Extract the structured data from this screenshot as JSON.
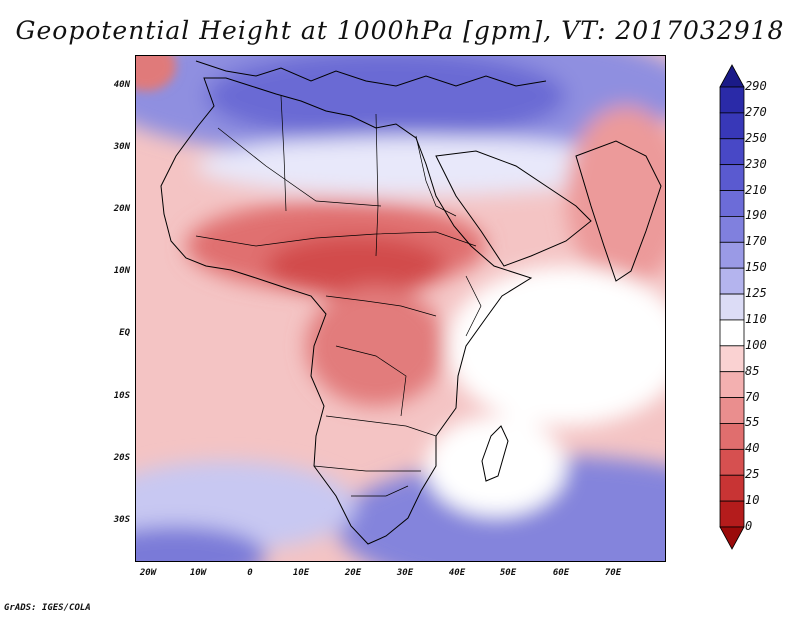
{
  "title": "Geopotential Height at 1000hPa [gpm], VT: 2017032918",
  "credit": "GrADS: IGES/COLA",
  "chart_data": {
    "type": "heatmap",
    "variable": "Geopotential Height",
    "level": "1000hPa",
    "units": "gpm",
    "valid_time": "2017032918",
    "lat_range": [
      -36,
      45
    ],
    "lon_range": [
      -23,
      80
    ],
    "lat_ticks": [
      "40N",
      "30N",
      "20N",
      "10N",
      "EQ",
      "10S",
      "20S",
      "30S"
    ],
    "lat_tick_values": [
      40,
      30,
      20,
      10,
      0,
      -10,
      -20,
      -30
    ],
    "lon_ticks": [
      "20W",
      "10W",
      "0",
      "10E",
      "20E",
      "30E",
      "40E",
      "50E",
      "60E",
      "70E"
    ],
    "lon_tick_values": [
      -20,
      -10,
      0,
      10,
      20,
      30,
      40,
      50,
      60,
      70
    ],
    "colorbar": {
      "levels": [
        "290",
        "270",
        "250",
        "230",
        "210",
        "190",
        "170",
        "150",
        "125",
        "110",
        "100",
        "85",
        "70",
        "55",
        "40",
        "25",
        "10",
        "0"
      ],
      "level_values": [
        290,
        270,
        250,
        230,
        210,
        190,
        170,
        150,
        125,
        110,
        100,
        85,
        70,
        55,
        40,
        25,
        10,
        0
      ],
      "colors": [
        "#1a1a88",
        "#2a2aa8",
        "#3838b8",
        "#4848c6",
        "#5a5ad0",
        "#6c6cd8",
        "#8080de",
        "#9a9ae6",
        "#b4b4ee",
        "#dcdcf6",
        "#ffffff",
        "#fad2d2",
        "#f3b0b0",
        "#ea8e8e",
        "#e06e6e",
        "#d65050",
        "#c83434",
        "#b41c1c",
        "#9a0a0a"
      ]
    }
  }
}
